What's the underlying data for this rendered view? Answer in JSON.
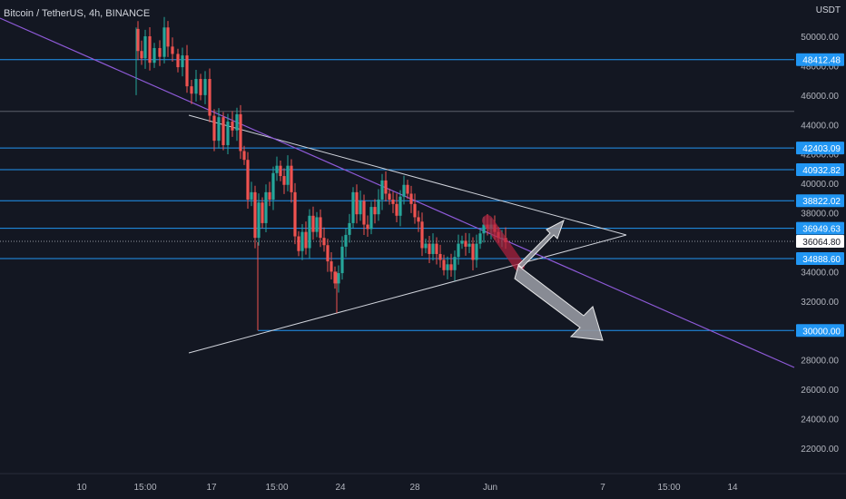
{
  "chart_data": {
    "type": "candlestick",
    "title": "Bitcoin / TetherUS, 4h, BINANCE",
    "currency": "USDT",
    "y_ticks": [
      22000,
      24000,
      26000,
      28000,
      30000,
      32000,
      34000,
      36000,
      38000,
      40000,
      42000,
      44000,
      46000,
      48000,
      50000
    ],
    "y_range": [
      20500,
      52200
    ],
    "x_ticks": [
      "10",
      "15:00",
      "17",
      "15:00",
      "24",
      "28",
      "Jun",
      "7",
      "15:00",
      "14"
    ],
    "current_price": 36064.8,
    "horizontal_levels": [
      48412.48,
      42403.09,
      40932.82,
      38822.02,
      36949.63,
      34888.6,
      30000.0
    ],
    "level_labels": [
      "48412.48",
      "42403.09",
      "40932.82",
      "38822.02",
      "36949.63",
      "34888.60",
      "30000.00"
    ],
    "current_price_label": "36064.80",
    "tick_labels": [
      "22000.00",
      "24000.00",
      "26000.00",
      "28000.00",
      "30000.00",
      "32000.00",
      "34000.00",
      "36000.00",
      "38000.00",
      "40000.00",
      "42000.00",
      "44000.00",
      "46000.00",
      "48000.00",
      "50000.00"
    ],
    "grid": false,
    "colors": {
      "background": "#131722",
      "up": "#26a69a",
      "down": "#ef5350",
      "level": "#2196f3",
      "trendline": "#8e5ad8",
      "triangle": "#d1d4dc",
      "axis_text": "#b2b5be",
      "label_bg": "#2196f3",
      "highlight": "#b2223f",
      "arrow": "#9598a1"
    }
  }
}
